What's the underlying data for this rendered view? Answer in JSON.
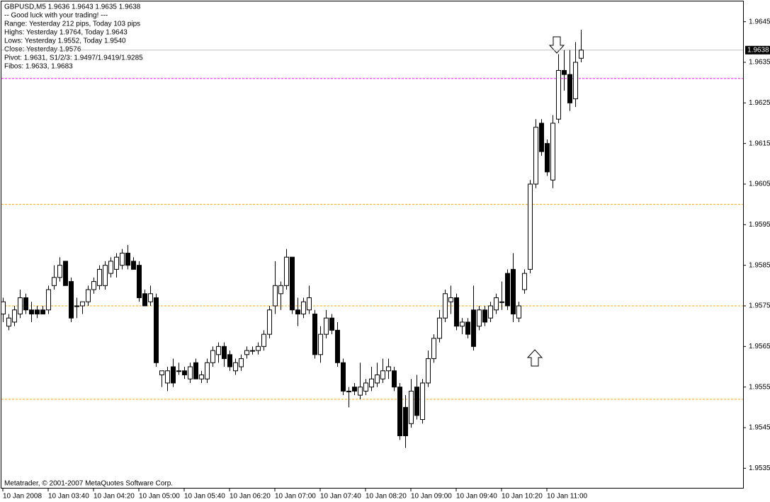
{
  "chart_data": {
    "type": "candlestick",
    "info": [
      "GBPUSD,M5  1.9636 1.9643 1.9635 1.9638",
      "-- Good luck with your trading! ---",
      "Range: Yesterday 212 pips, Today 103 pips",
      "Highs: Yesterday 1.9764, Today 1.9643",
      "Lows:  Yesterday 1.9552, Today 1.9540",
      "Close: Yesterday 1.9576",
      "Pivot: 1.9631, S1/2/3: 1.9497/1.9419/1.9285",
      "Fibos: 1.9633, 1.9683"
    ],
    "footer": "Metatrader, © 2001-2007 MetaQuotes Software Corp.",
    "ylim": [
      1.953,
      1.965
    ],
    "yticks": [
      1.9535,
      1.9545,
      1.9555,
      1.9565,
      1.9575,
      1.9585,
      1.9595,
      1.9605,
      1.9615,
      1.9625,
      1.9635,
      1.9645
    ],
    "xticks": [
      {
        "value": 0,
        "label": "10 Jan 2008"
      },
      {
        "value": 8,
        "label": "10 Jan 03:40"
      },
      {
        "value": 16,
        "label": "10 Jan 04:20"
      },
      {
        "value": 24,
        "label": "10 Jan 05:00"
      },
      {
        "value": 32,
        "label": "10 Jan 05:40"
      },
      {
        "value": 40,
        "label": "10 Jan 06:20"
      },
      {
        "value": 48,
        "label": "10 Jan 07:00"
      },
      {
        "value": 56,
        "label": "10 Jan 07:40"
      },
      {
        "value": 64,
        "label": "10 Jan 08:20"
      },
      {
        "value": 72,
        "label": "10 Jan 09:00"
      },
      {
        "value": 80,
        "label": "10 Jan 09:40"
      },
      {
        "value": 88,
        "label": "10 Jan 10:20"
      },
      {
        "value": 96,
        "label": "10 Jan 11:00"
      }
    ],
    "current_price": 1.9638,
    "current_price_color": "#c0c0c0",
    "levels": [
      {
        "value": 1.9631,
        "color": "#ff00ff"
      },
      {
        "value": 1.96,
        "color": "#ffa500"
      },
      {
        "value": 1.9575,
        "color": "#ffa500"
      },
      {
        "value": 1.9552,
        "color": "#ffa500"
      }
    ],
    "up_color": "#ffffff",
    "down_color": "#000000",
    "candles": [
      [
        1.9573,
        1.9577,
        1.9571,
        1.9576
      ],
      [
        1.957,
        1.9573,
        1.9569,
        1.9572
      ],
      [
        1.9571,
        1.9575,
        1.957,
        1.9574
      ],
      [
        1.9573,
        1.9579,
        1.9572,
        1.9577
      ],
      [
        1.9577,
        1.9578,
        1.9573,
        1.9574
      ],
      [
        1.9574,
        1.9576,
        1.9571,
        1.9573
      ],
      [
        1.9574,
        1.9575,
        1.9572,
        1.9573
      ],
      [
        1.9574,
        1.9575,
        1.9573,
        1.9573
      ],
      [
        1.9574,
        1.958,
        1.9573,
        1.9579
      ],
      [
        1.958,
        1.9585,
        1.9579,
        1.9582
      ],
      [
        1.9582,
        1.9587,
        1.9581,
        1.9585
      ],
      [
        1.9586,
        1.9586,
        1.958,
        1.958
      ],
      [
        1.9581,
        1.9582,
        1.9571,
        1.9572
      ],
      [
        1.9575,
        1.9577,
        1.9572,
        1.9575
      ],
      [
        1.9575,
        1.9576,
        1.9573,
        1.9576
      ],
      [
        1.9576,
        1.958,
        1.9575,
        1.9579
      ],
      [
        1.9579,
        1.9582,
        1.9578,
        1.9581
      ],
      [
        1.958,
        1.9585,
        1.9579,
        1.9584
      ],
      [
        1.958,
        1.9586,
        1.9579,
        1.9585
      ],
      [
        1.9583,
        1.9587,
        1.9582,
        1.9586
      ],
      [
        1.9584,
        1.9588,
        1.9582,
        1.9587
      ],
      [
        1.9585,
        1.9589,
        1.9584,
        1.9588
      ],
      [
        1.9588,
        1.959,
        1.9584,
        1.9585
      ],
      [
        1.9586,
        1.9587,
        1.9584,
        1.9584
      ],
      [
        1.9585,
        1.9586,
        1.9576,
        1.9577
      ],
      [
        1.9578,
        1.9579,
        1.9575,
        1.9575
      ],
      [
        1.9576,
        1.958,
        1.9575,
        1.9578
      ],
      [
        1.9577,
        1.9578,
        1.956,
        1.9561
      ],
      [
        1.9558,
        1.9559,
        1.9555,
        1.9559
      ],
      [
        1.9556,
        1.956,
        1.9554,
        1.9559
      ],
      [
        1.956,
        1.9562,
        1.9555,
        1.9556
      ],
      [
        1.9559,
        1.9561,
        1.9558,
        1.9559
      ],
      [
        1.9559,
        1.956,
        1.9557,
        1.9558
      ],
      [
        1.9557,
        1.9561,
        1.9556,
        1.956
      ],
      [
        1.9561,
        1.9562,
        1.9557,
        1.9557
      ],
      [
        1.9557,
        1.9559,
        1.9556,
        1.9558
      ],
      [
        1.9557,
        1.9562,
        1.9556,
        1.9561
      ],
      [
        1.9561,
        1.9565,
        1.956,
        1.9564
      ],
      [
        1.9563,
        1.9566,
        1.9561,
        1.9565
      ],
      [
        1.9565,
        1.9566,
        1.956,
        1.9562
      ],
      [
        1.9563,
        1.9564,
        1.9559,
        1.956
      ],
      [
        1.9559,
        1.9562,
        1.9558,
        1.9561
      ],
      [
        1.956,
        1.9563,
        1.9559,
        1.9562
      ],
      [
        1.9563,
        1.9565,
        1.9562,
        1.9564
      ],
      [
        1.9564,
        1.9565,
        1.9563,
        1.9564
      ],
      [
        1.9564,
        1.9566,
        1.9563,
        1.9565
      ],
      [
        1.9565,
        1.9569,
        1.9564,
        1.9568
      ],
      [
        1.9568,
        1.9575,
        1.9567,
        1.9574
      ],
      [
        1.9575,
        1.9586,
        1.9573,
        1.958
      ],
      [
        1.9578,
        1.9581,
        1.9574,
        1.958
      ],
      [
        1.958,
        1.9589,
        1.9579,
        1.9587
      ],
      [
        1.9587,
        1.9587,
        1.9573,
        1.9574
      ],
      [
        1.9574,
        1.9577,
        1.957,
        1.9573
      ],
      [
        1.9573,
        1.9577,
        1.9572,
        1.9576
      ],
      [
        1.9574,
        1.958,
        1.9573,
        1.9577
      ],
      [
        1.9573,
        1.9574,
        1.9562,
        1.9563
      ],
      [
        1.9563,
        1.957,
        1.9561,
        1.9568
      ],
      [
        1.9568,
        1.9574,
        1.9567,
        1.9572
      ],
      [
        1.9572,
        1.9573,
        1.9568,
        1.9569
      ],
      [
        1.9569,
        1.9571,
        1.956,
        1.9561
      ],
      [
        1.9561,
        1.9562,
        1.9553,
        1.9554
      ],
      [
        1.9554,
        1.9555,
        1.955,
        1.9554
      ],
      [
        1.9555,
        1.9556,
        1.9553,
        1.9554
      ],
      [
        1.9553,
        1.9561,
        1.9552,
        1.9555
      ],
      [
        1.9554,
        1.9557,
        1.9553,
        1.9556
      ],
      [
        1.9555,
        1.956,
        1.9554,
        1.9557
      ],
      [
        1.9556,
        1.9561,
        1.9555,
        1.9558
      ],
      [
        1.9557,
        1.9562,
        1.9556,
        1.9559
      ],
      [
        1.9559,
        1.9562,
        1.9557,
        1.956
      ],
      [
        1.9559,
        1.956,
        1.9554,
        1.9555
      ],
      [
        1.9555,
        1.9556,
        1.9542,
        1.9543
      ],
      [
        1.955,
        1.9553,
        1.954,
        1.9543
      ],
      [
        1.9546,
        1.9557,
        1.9545,
        1.9554
      ],
      [
        1.9555,
        1.9558,
        1.9547,
        1.9548
      ],
      [
        1.9547,
        1.9557,
        1.9546,
        1.9556
      ],
      [
        1.9556,
        1.9564,
        1.9555,
        1.9562
      ],
      [
        1.9562,
        1.9568,
        1.9561,
        1.9567
      ],
      [
        1.9567,
        1.9574,
        1.9566,
        1.9572
      ],
      [
        1.9572,
        1.9579,
        1.9571,
        1.9578
      ],
      [
        1.9576,
        1.958,
        1.9573,
        1.9577
      ],
      [
        1.9577,
        1.9578,
        1.9569,
        1.957
      ],
      [
        1.957,
        1.9572,
        1.9568,
        1.9571
      ],
      [
        1.9571,
        1.9572,
        1.9567,
        1.9568
      ],
      [
        1.9574,
        1.958,
        1.9564,
        1.9565
      ],
      [
        1.957,
        1.9575,
        1.9569,
        1.9574
      ],
      [
        1.9574,
        1.9575,
        1.957,
        1.9571
      ],
      [
        1.9572,
        1.9576,
        1.9571,
        1.9575
      ],
      [
        1.9574,
        1.9578,
        1.9573,
        1.9577
      ],
      [
        1.9576,
        1.9581,
        1.9574,
        1.9576
      ],
      [
        1.9583,
        1.9584,
        1.9574,
        1.9575
      ],
      [
        1.9584,
        1.9588,
        1.9571,
        1.9573
      ],
      [
        1.9572,
        1.9576,
        1.9571,
        1.9575
      ],
      [
        1.9579,
        1.9584,
        1.9578,
        1.9583
      ],
      [
        1.9584,
        1.9606,
        1.9583,
        1.9605
      ],
      [
        1.9605,
        1.9621,
        1.9604,
        1.9619
      ],
      [
        1.962,
        1.9621,
        1.9612,
        1.9613
      ],
      [
        1.9615,
        1.9616,
        1.9607,
        1.9608
      ],
      [
        1.9606,
        1.9622,
        1.9604,
        1.962
      ],
      [
        1.9621,
        1.9637,
        1.962,
        1.9633
      ],
      [
        1.9633,
        1.9638,
        1.9628,
        1.9632
      ],
      [
        1.9632,
        1.9638,
        1.9623,
        1.9625
      ],
      [
        1.9626,
        1.964,
        1.9624,
        1.9635
      ],
      [
        1.9636,
        1.9643,
        1.9635,
        1.9638
      ]
    ]
  }
}
